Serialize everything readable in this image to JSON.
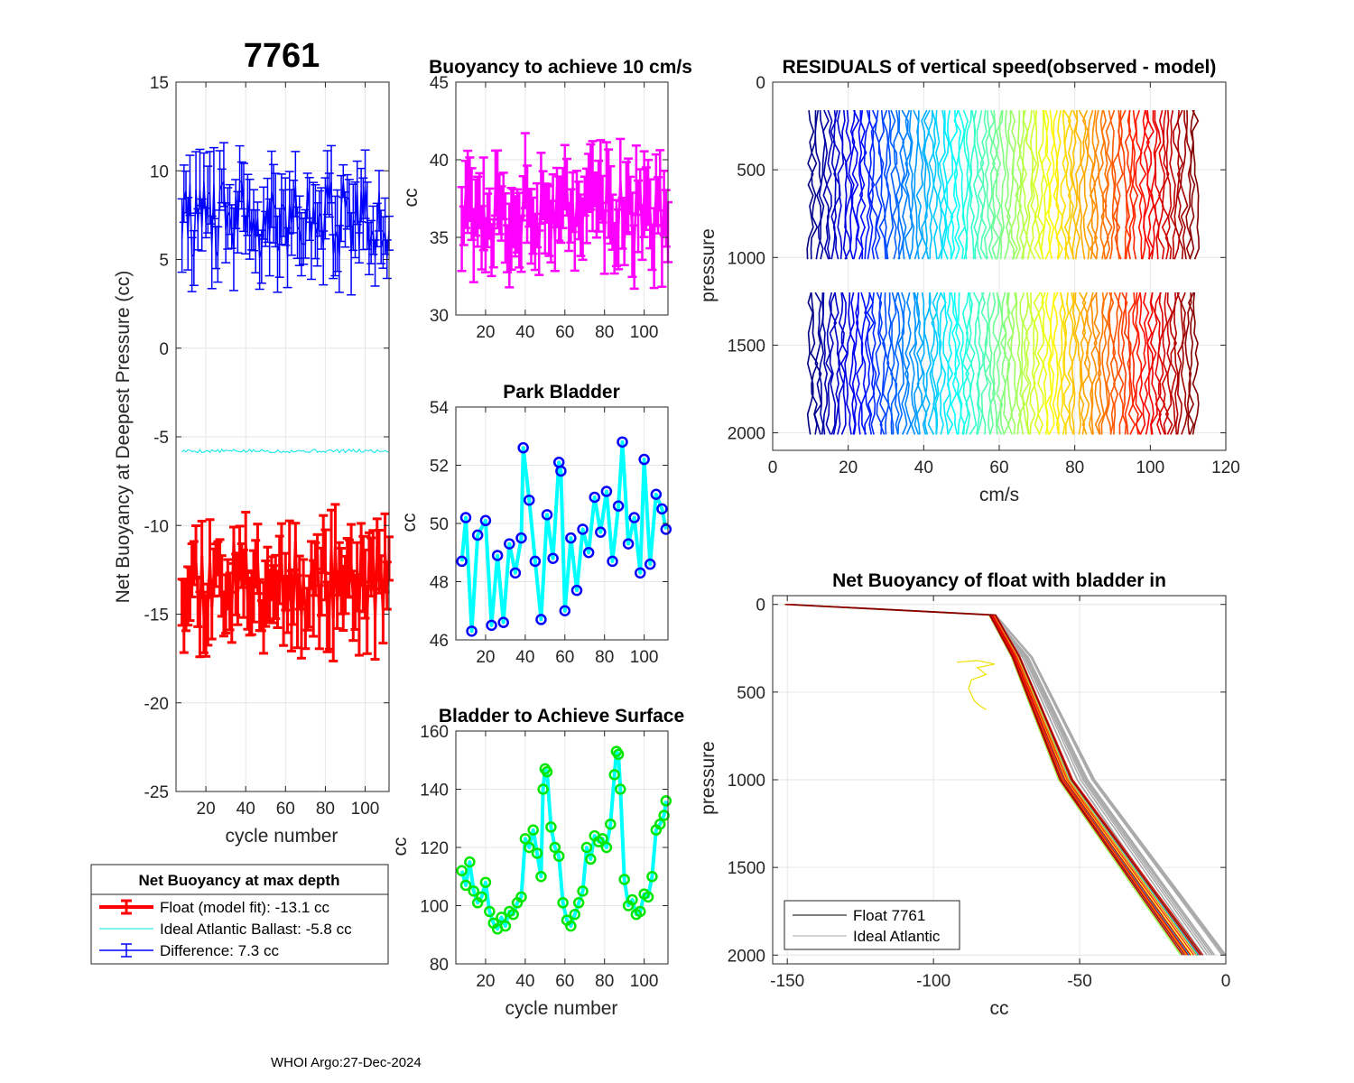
{
  "figure": {
    "float_id": "7761",
    "footer": "WHOI Argo:27-Dec-2024",
    "common_xlabel": "cycle number"
  },
  "legend_main": {
    "title": "Net Buoyancy at max depth",
    "entries": [
      {
        "label": "Float (model fit): -13.1 cc",
        "color": "#ff0000"
      },
      {
        "label": "Ideal Atlantic Ballast:  -5.8 cc",
        "color": "#00e5e5"
      },
      {
        "label": "Difference:   7.3 cc",
        "color": "#0000ff"
      }
    ]
  },
  "legend_profile": {
    "entries": [
      {
        "label": "Float 7761",
        "color": "#000000"
      },
      {
        "label": "Ideal Atlantic",
        "color": "#aaaaaa"
      }
    ]
  },
  "chart_data": [
    {
      "id": "net-buoyancy",
      "type": "errorbar",
      "title": "7761",
      "xlabel": "cycle number",
      "ylabel": "Net Buoyancy at Deepest Pressure (cc)",
      "xlim": [
        5,
        112
      ],
      "ylim": [
        -25,
        15
      ],
      "xticks": [
        20,
        40,
        60,
        80,
        100
      ],
      "yticks": [
        -25,
        -20,
        -15,
        -10,
        -5,
        0,
        5,
        10,
        15
      ],
      "x": [
        8,
        112
      ],
      "series": [
        {
          "name": "Float (model fit)",
          "mean": -13.1,
          "spread": 1.5,
          "err": 1.6,
          "color": "#ff0000"
        },
        {
          "name": "Ideal Atlantic Ballast",
          "mean": -5.8,
          "spread": 0.1,
          "color": "#00e5e5"
        },
        {
          "name": "Difference",
          "mean": 7.3,
          "spread": 1.5,
          "err": 1.6,
          "color": "#0000ff"
        }
      ]
    },
    {
      "id": "buoyancy-10cms",
      "type": "errorbar",
      "title": "Buoyancy to achieve 10 cm/s",
      "xlabel": "",
      "ylabel": "cc",
      "xlim": [
        5,
        112
      ],
      "ylim": [
        30,
        45
      ],
      "xticks": [
        20,
        40,
        60,
        80,
        100
      ],
      "yticks": [
        30,
        35,
        40,
        45
      ],
      "x": [
        8,
        112
      ],
      "mean": 36.5,
      "spread": 1.5,
      "err": 2.0,
      "color": "#ff00ff"
    },
    {
      "id": "park-bladder",
      "type": "line",
      "title": "Park Bladder",
      "xlabel": "",
      "ylabel": "cc",
      "xlim": [
        5,
        112
      ],
      "ylim": [
        46,
        54
      ],
      "xticks": [
        20,
        40,
        60,
        80,
        100
      ],
      "yticks": [
        46,
        48,
        50,
        52,
        54
      ],
      "x": [
        8,
        10,
        13,
        16,
        20,
        23,
        26,
        29,
        32,
        35,
        38,
        39,
        42,
        45,
        48,
        51,
        54,
        57,
        58,
        60,
        63,
        66,
        69,
        72,
        75,
        78,
        81,
        84,
        87,
        89,
        92,
        95,
        98,
        100,
        103,
        106,
        109,
        111
      ],
      "y": [
        48.7,
        50.2,
        46.3,
        49.6,
        50.1,
        46.5,
        48.9,
        46.6,
        49.3,
        48.3,
        49.5,
        52.6,
        50.8,
        48.7,
        46.7,
        50.3,
        48.8,
        52.1,
        51.8,
        47.0,
        49.5,
        47.7,
        49.8,
        49.0,
        50.9,
        49.7,
        51.1,
        48.7,
        50.6,
        52.8,
        49.3,
        50.2,
        48.3,
        52.2,
        48.6,
        51.0,
        50.5,
        49.8
      ],
      "line_color": "#00ffff",
      "marker_color": "#0000ff"
    },
    {
      "id": "bladder-surface",
      "type": "line",
      "title": "Bladder to Achieve Surface",
      "xlabel": "cycle number",
      "ylabel": "cc",
      "xlim": [
        5,
        112
      ],
      "ylim": [
        80,
        160
      ],
      "xticks": [
        20,
        40,
        60,
        80,
        100
      ],
      "yticks": [
        80,
        100,
        120,
        140,
        160
      ],
      "x": [
        8,
        10,
        12,
        14,
        16,
        18,
        20,
        22,
        24,
        26,
        28,
        30,
        32,
        34,
        36,
        38,
        40,
        42,
        44,
        46,
        48,
        49,
        50,
        51,
        53,
        55,
        57,
        59,
        61,
        63,
        65,
        67,
        69,
        71,
        73,
        75,
        77,
        79,
        81,
        83,
        85,
        86,
        87,
        88,
        90,
        92,
        94,
        96,
        98,
        100,
        102,
        104,
        106,
        108,
        110,
        111
      ],
      "y": [
        112,
        107,
        115,
        105,
        101,
        103,
        108,
        98,
        94,
        92,
        96,
        93,
        98,
        97,
        101,
        103,
        123,
        120,
        126,
        118,
        110,
        140,
        147,
        146,
        127,
        120,
        117,
        101,
        95,
        93,
        97,
        101,
        105,
        120,
        116,
        124,
        122,
        123,
        120,
        128,
        145,
        153,
        152,
        140,
        109,
        100,
        102,
        97,
        98,
        104,
        103,
        110,
        126,
        128,
        131,
        136
      ],
      "line_color": "#00ffff",
      "marker_color": "#00e600"
    },
    {
      "id": "residuals",
      "type": "line",
      "title": "RESIDUALS of vertical speed(observed - model)",
      "xlabel": "cm/s",
      "ylabel": "pressure",
      "xlim": [
        0,
        120
      ],
      "ylim": [
        0,
        2100
      ],
      "y_reversed": true,
      "xticks": [
        0,
        20,
        40,
        60,
        80,
        100,
        120
      ],
      "yticks": [
        0,
        500,
        1000,
        1500,
        2000
      ],
      "cycles": [
        10,
        112
      ],
      "segments": [
        [
          160,
          1010
        ],
        [
          1200,
          2010
        ]
      ],
      "colormap": "jet"
    },
    {
      "id": "net-buoyancy-profile",
      "type": "line",
      "title": "Net Buoyancy of float with bladder in",
      "xlabel": "cc",
      "ylabel": "pressure",
      "xlim": [
        -155,
        0
      ],
      "ylim": [
        -50,
        2050
      ],
      "y_reversed": true,
      "xticks": [
        -150,
        -100,
        -50,
        0
      ],
      "yticks": [
        0,
        500,
        1000,
        1500,
        2000
      ],
      "profile_shape": {
        "pressure": [
          0,
          60,
          300,
          1000,
          2000
        ],
        "cc": [
          -150,
          -80,
          -72,
          -55,
          -12
        ]
      },
      "ideal_shape": {
        "pressure": [
          0,
          60,
          300,
          1000,
          2000
        ],
        "cc": [
          -150,
          -80,
          -68,
          -48,
          -5
        ]
      },
      "outlier": {
        "pressure": [
          330,
          320,
          340,
          360,
          400,
          430,
          480,
          550,
          580,
          600
        ],
        "cc": [
          -92,
          -85,
          -79,
          -85,
          -82,
          -87,
          -88,
          -86,
          -84,
          -82
        ],
        "color": "#f0e000"
      }
    }
  ]
}
